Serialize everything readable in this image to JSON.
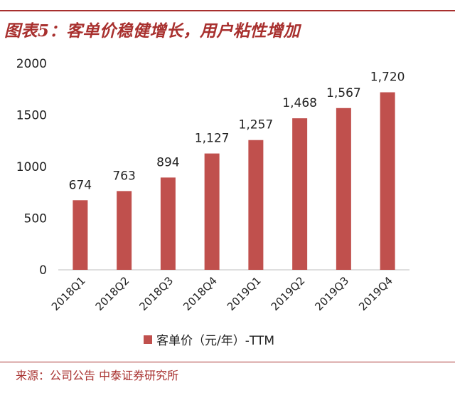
{
  "page": {
    "title": "图表5：客单价稳健增长，用户粘性增加",
    "source": "来源：公司公告  中泰证券研究所"
  },
  "colors": {
    "accent": "#a8302e",
    "bar": "#c0504d",
    "axis": "#bfbfbf",
    "text": "#222222"
  },
  "chart_data": {
    "type": "bar",
    "title": "",
    "xlabel": "",
    "ylabel": "",
    "categories": [
      "2018Q1",
      "2018Q2",
      "2018Q3",
      "2018Q4",
      "2019Q1",
      "2019Q2",
      "2019Q3",
      "2019Q4"
    ],
    "series": [
      {
        "name": "客单价（元/年）-TTM",
        "values": [
          674,
          763,
          894,
          1127,
          1257,
          1468,
          1567,
          1720
        ],
        "labels": [
          "674",
          "763",
          "894",
          "1,127",
          "1,257",
          "1,468",
          "1,567",
          "1,720"
        ]
      }
    ],
    "ylim": [
      0,
      2000
    ],
    "yticks": [
      "0",
      "500",
      "1000",
      "1500",
      "2000"
    ],
    "grid": false,
    "legend_position": "bottom"
  }
}
